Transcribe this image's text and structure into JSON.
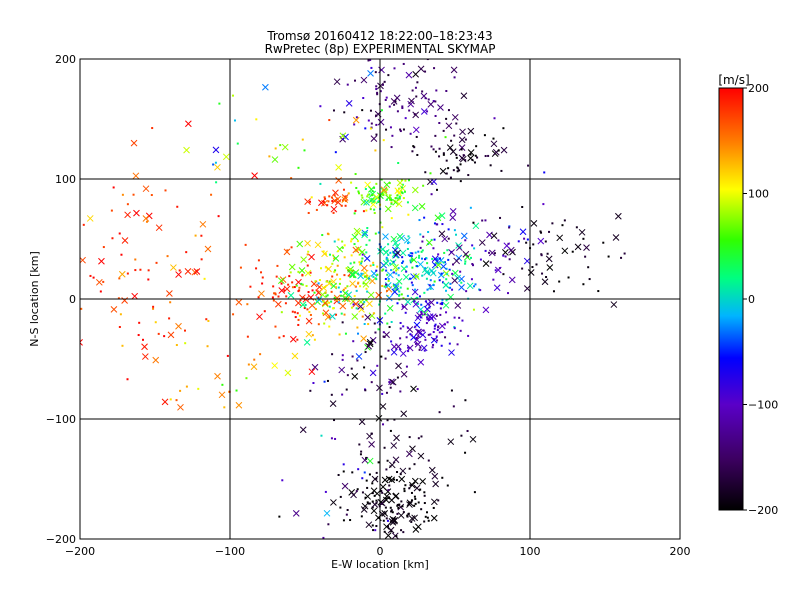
{
  "chart_data": {
    "type": "scatter",
    "title": "Tromsø 20160412 18:22:00–18:23:43",
    "subtitle": "RwPretec (8p) EXPERIMENTAL SKYMAP",
    "xlabel": "E-W location [km]",
    "ylabel": "N-S location [km]",
    "xlim": [
      -200,
      200
    ],
    "ylim": [
      -200,
      200
    ],
    "xticks": [
      -200,
      -100,
      0,
      100,
      200
    ],
    "yticks": [
      -200,
      -100,
      0,
      100,
      200
    ],
    "grid": true,
    "colorbar": {
      "label": "[m/s]",
      "range": [
        -200,
        200
      ],
      "ticks": [
        200,
        100,
        0,
        -100,
        -200
      ],
      "colormap": "rainbow (black → purple → blue → cyan → green → yellow → red)"
    },
    "marker_types": [
      "dot",
      "cross"
    ],
    "clusters": [
      {
        "x_center": 15,
        "y_center": 165,
        "x_spread": 22,
        "y_spread": 20,
        "velocity_mean": -150,
        "velocity_spread": 25,
        "count": 110
      },
      {
        "x_center": 60,
        "y_center": 120,
        "x_spread": 16,
        "y_spread": 12,
        "velocity_mean": -185,
        "velocity_spread": 15,
        "count": 60
      },
      {
        "x_center": 5,
        "y_center": 85,
        "x_spread": 12,
        "y_spread": 7,
        "velocity_mean": 60,
        "velocity_spread": 30,
        "count": 90
      },
      {
        "x_center": -35,
        "y_center": 80,
        "x_spread": 10,
        "y_spread": 5,
        "velocity_mean": 180,
        "velocity_spread": 15,
        "count": 30
      },
      {
        "x_center": -60,
        "y_center": 0,
        "x_spread": 14,
        "y_spread": 16,
        "velocity_mean": 185,
        "velocity_spread": 15,
        "count": 80
      },
      {
        "x_center": -25,
        "y_center": 15,
        "x_spread": 16,
        "y_spread": 22,
        "velocity_mean": 90,
        "velocity_spread": 45,
        "count": 200
      },
      {
        "x_center": 20,
        "y_center": 25,
        "x_spread": 20,
        "y_spread": 20,
        "velocity_mean": -10,
        "velocity_spread": 35,
        "count": 230
      },
      {
        "x_center": 30,
        "y_center": -25,
        "x_spread": 14,
        "y_spread": 12,
        "velocity_mean": -100,
        "velocity_spread": 20,
        "count": 100
      },
      {
        "x_center": -5,
        "y_center": -55,
        "x_spread": 20,
        "y_spread": 18,
        "velocity_mean": -150,
        "velocity_spread": 40,
        "count": 60
      },
      {
        "x_center": 5,
        "y_center": -170,
        "x_spread": 16,
        "y_spread": 16,
        "velocity_mean": -195,
        "velocity_spread": 10,
        "count": 150
      },
      {
        "x_center": 20,
        "y_center": -120,
        "x_spread": 25,
        "y_spread": 25,
        "velocity_mean": -185,
        "velocity_spread": 15,
        "count": 50
      },
      {
        "x_center": 120,
        "y_center": 40,
        "x_spread": 22,
        "y_spread": 18,
        "velocity_mean": -190,
        "velocity_spread": 15,
        "count": 50
      },
      {
        "x_center": 60,
        "y_center": 40,
        "x_spread": 25,
        "y_spread": 25,
        "velocity_mean": -120,
        "velocity_spread": 30,
        "count": 80
      },
      {
        "x_center": -150,
        "y_center": 20,
        "x_spread": 30,
        "y_spread": 40,
        "velocity_mean": 175,
        "velocity_spread": 25,
        "count": 90
      },
      {
        "x_center": -110,
        "y_center": -60,
        "x_spread": 25,
        "y_spread": 20,
        "velocity_mean": 130,
        "velocity_spread": 40,
        "count": 30
      },
      {
        "x_center": -60,
        "y_center": 130,
        "x_spread": 40,
        "y_spread": 25,
        "velocity_mean": 60,
        "velocity_spread": 80,
        "count": 45
      },
      {
        "x_center": -30,
        "y_center": -150,
        "x_spread": 20,
        "y_spread": 30,
        "velocity_mean": -100,
        "velocity_spread": 60,
        "count": 30
      }
    ]
  }
}
